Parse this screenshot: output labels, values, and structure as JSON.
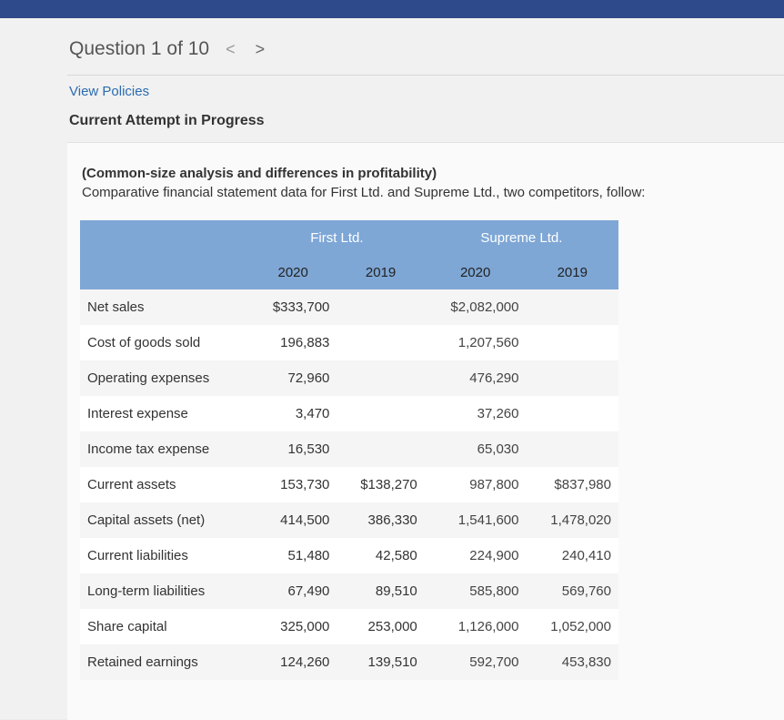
{
  "header": {
    "question_title": "Question 1 of 10",
    "prev_glyph": "<",
    "next_glyph": ">"
  },
  "links": {
    "view_policies": "View Policies"
  },
  "attempt_status": "Current Attempt in Progress",
  "problem": {
    "title": "(Common-size analysis and differences in profitability)",
    "text": "Comparative financial statement data for First Ltd. and Supreme Ltd., two competitors, follow:"
  },
  "table": {
    "companies": [
      "First Ltd.",
      "Supreme Ltd."
    ],
    "years": [
      "2020",
      "2019",
      "2020",
      "2019"
    ],
    "rows": [
      {
        "label": "Net sales",
        "values": [
          "$333,700",
          "",
          "$2,082,000",
          ""
        ]
      },
      {
        "label": "Cost of goods sold",
        "values": [
          "196,883",
          "",
          "1,207,560",
          ""
        ]
      },
      {
        "label": "Operating expenses",
        "values": [
          "72,960",
          "",
          "476,290",
          ""
        ]
      },
      {
        "label": "Interest expense",
        "values": [
          "3,470",
          "",
          "37,260",
          ""
        ]
      },
      {
        "label": "Income tax expense",
        "values": [
          "16,530",
          "",
          "65,030",
          ""
        ]
      },
      {
        "label": "Current assets",
        "values": [
          "153,730",
          "$138,270",
          "987,800",
          "$837,980"
        ]
      },
      {
        "label": "Capital assets (net)",
        "values": [
          "414,500",
          "386,330",
          "1,541,600",
          "1,478,020"
        ]
      },
      {
        "label": "Current liabilities",
        "values": [
          "51,480",
          "42,580",
          "224,900",
          "240,410"
        ]
      },
      {
        "label": "Long-term liabilities",
        "values": [
          "67,490",
          "89,510",
          "585,800",
          "569,760"
        ]
      },
      {
        "label": "Share capital",
        "values": [
          "325,000",
          "253,000",
          "1,126,000",
          "1,052,000"
        ]
      },
      {
        "label": "Retained earnings",
        "values": [
          "124,260",
          "139,510",
          "592,700",
          "453,830"
        ]
      }
    ]
  },
  "colors": {
    "topbar": "#2f4a8a",
    "table_header": "#7ea7d6",
    "link": "#2b6cb0"
  }
}
